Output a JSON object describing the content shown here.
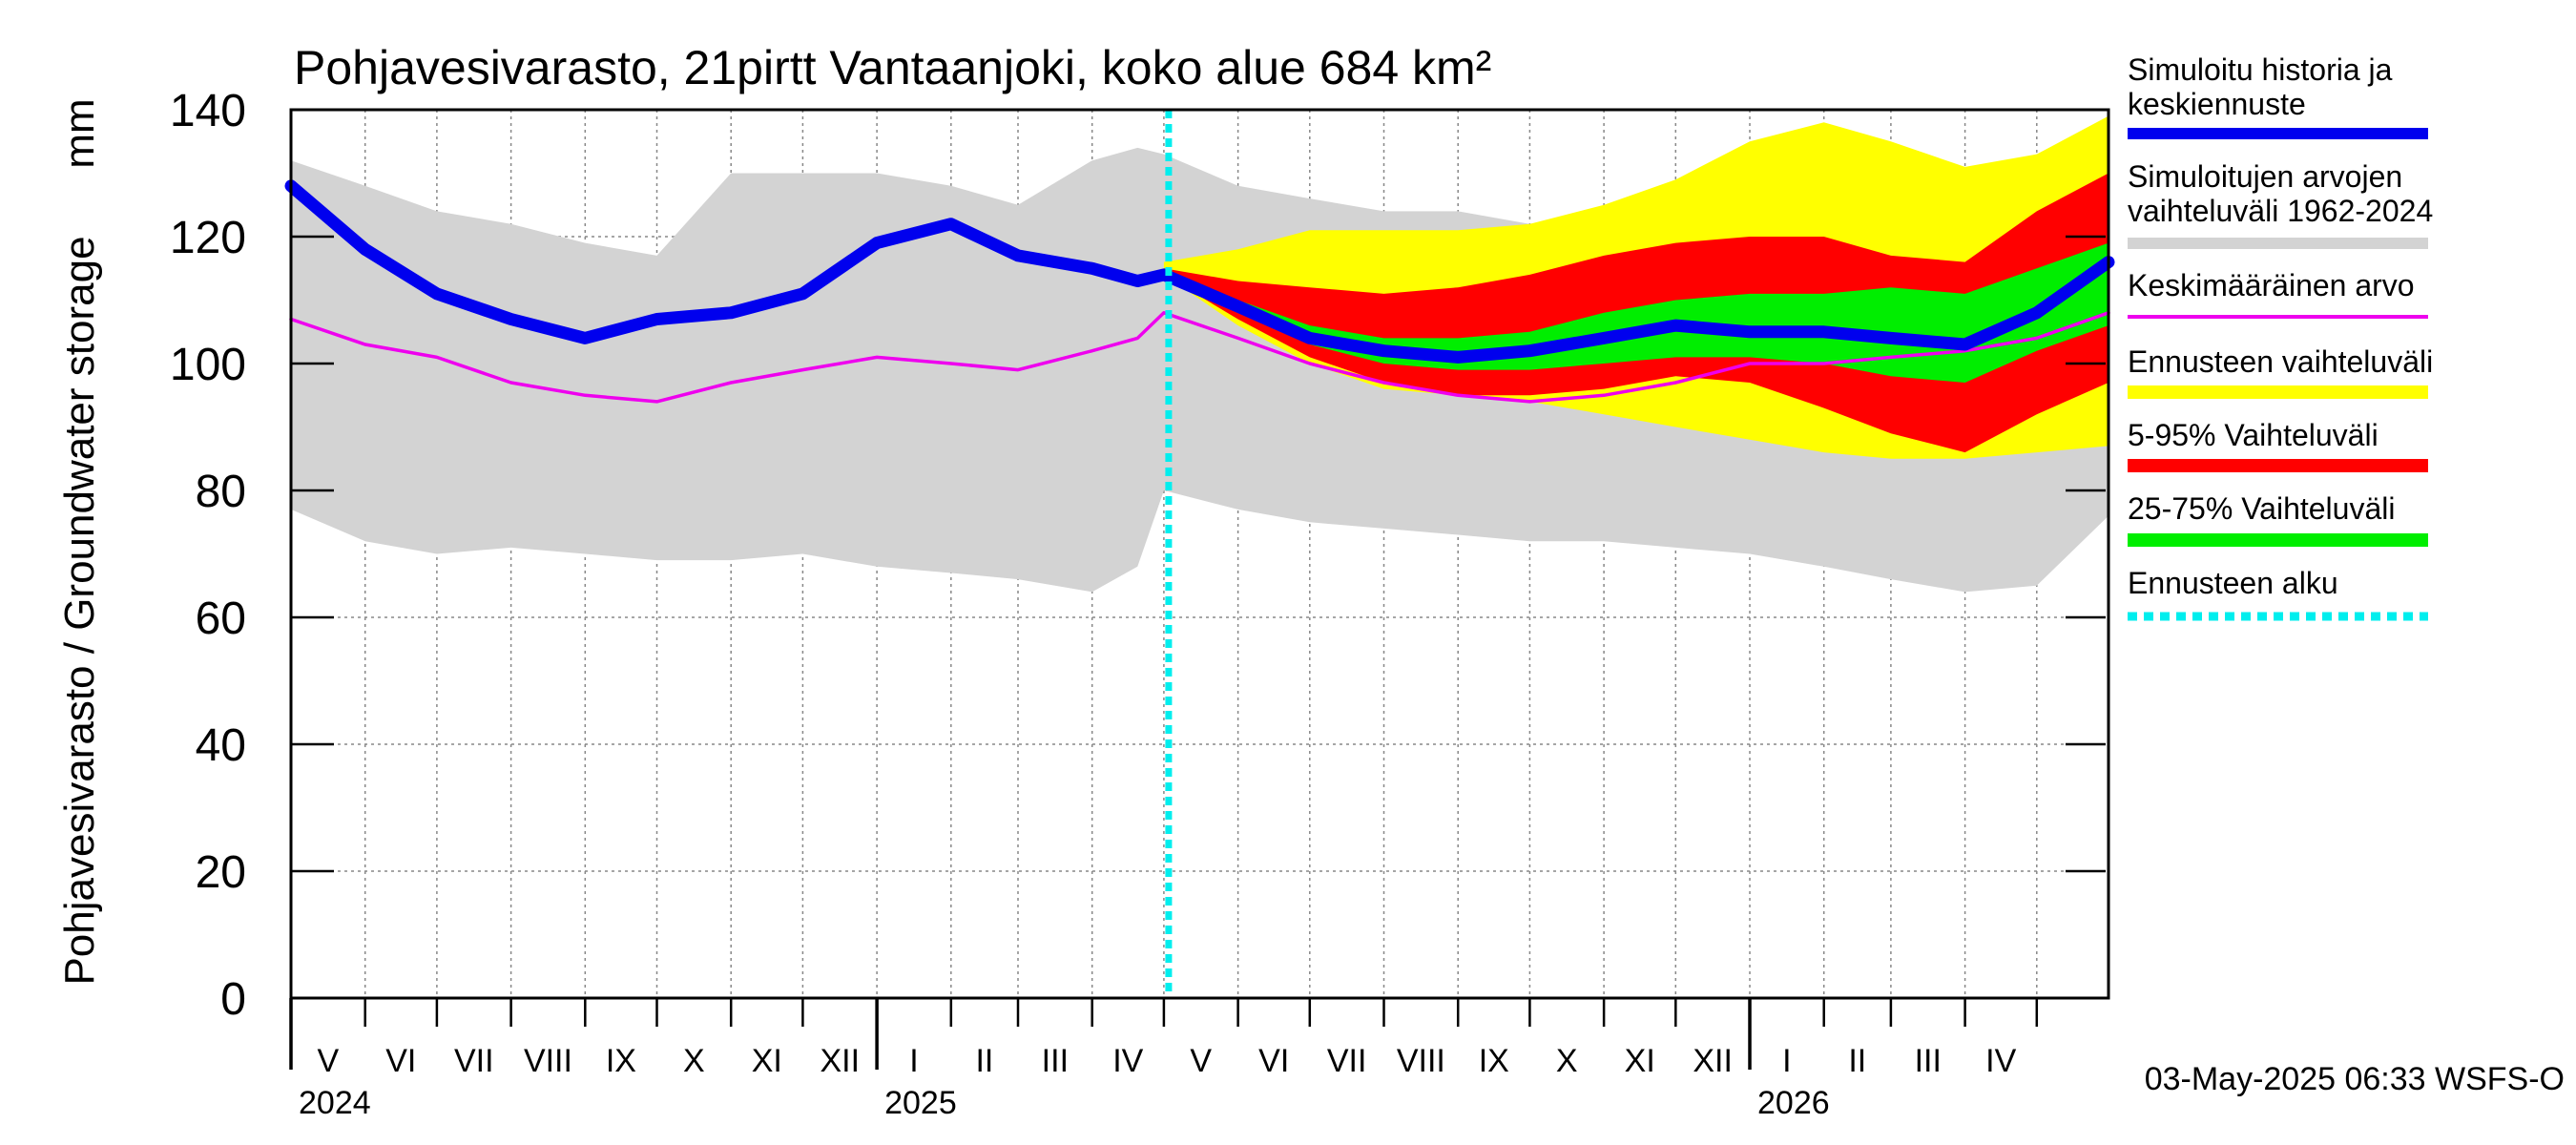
{
  "chart_data": {
    "type": "area",
    "title": "Pohjavesivarasto, 21pirtt Vantaanjoki, koko alue 684 km²",
    "ylabel": "Pohjavesivarasto / Groundwater storage",
    "yunit": "mm",
    "ylim": [
      0,
      140
    ],
    "yticks": [
      "0",
      "20",
      "40",
      "60",
      "80",
      "100",
      "120",
      "140"
    ],
    "x_range": [
      "2024-05-01",
      "2026-05-31"
    ],
    "month_labels": [
      "V",
      "VI",
      "VII",
      "VIII",
      "IX",
      "X",
      "XI",
      "XII",
      "I",
      "II",
      "III",
      "IV",
      "V",
      "VI",
      "VII",
      "VIII",
      "IX",
      "X",
      "XI",
      "XII",
      "I",
      "II",
      "III",
      "IV"
    ],
    "year_labels": [
      "2024",
      "2025",
      "2026"
    ],
    "forecast_start": "2025-05-03",
    "timestamp": "03-May-2025 06:33 WSFS-O",
    "grid": true,
    "legend_position": "right",
    "legend": [
      {
        "key": "sim",
        "text": "Simuloitu historia ja keskiennuste",
        "color": "#0000ee",
        "style": "thick"
      },
      {
        "key": "hist",
        "text": "Simuloitujen arvojen vaihteluväli 1962-2024",
        "color": "#d3d3d3",
        "style": "band"
      },
      {
        "key": "mean",
        "text": "Keskimääräinen arvo",
        "color": "#ee00ee",
        "style": "thin"
      },
      {
        "key": "ens",
        "text": "Ennusteen vaihteluväli",
        "color": "#ffff00",
        "style": "band"
      },
      {
        "key": "p5_95",
        "text": "5-95% Vaihteluväli",
        "color": "#ff0000",
        "style": "band"
      },
      {
        "key": "p25_75",
        "text": "25-75% Vaihteluväli",
        "color": "#00ee00",
        "style": "band"
      },
      {
        "key": "start",
        "text": "Ennusteen alku",
        "color": "#00eeee",
        "style": "dotted"
      }
    ],
    "series": [
      {
        "key": "hist",
        "type": "band",
        "x": [
          "2024-05-01",
          "2024-06-01",
          "2024-07-01",
          "2024-08-01",
          "2024-09-01",
          "2024-10-01",
          "2024-11-01",
          "2024-12-01",
          "2025-01-01",
          "2025-02-01",
          "2025-03-01",
          "2025-04-01",
          "2025-04-20",
          "2025-05-01",
          "2025-06-01",
          "2025-07-01",
          "2025-08-01",
          "2025-09-01",
          "2025-10-01",
          "2025-11-01",
          "2025-12-01",
          "2026-01-01",
          "2026-02-01",
          "2026-03-01",
          "2026-04-01",
          "2026-05-01",
          "2026-05-31"
        ],
        "low": [
          77,
          72,
          70,
          71,
          70,
          69,
          69,
          70,
          68,
          67,
          66,
          64,
          68,
          80,
          77,
          75,
          74,
          73,
          72,
          72,
          71,
          70,
          68,
          66,
          64,
          65,
          76
        ],
        "high": [
          132,
          128,
          124,
          122,
          119,
          117,
          130,
          130,
          130,
          128,
          125,
          132,
          134,
          133,
          128,
          126,
          124,
          124,
          122,
          124,
          126,
          127,
          126,
          128,
          130,
          133,
          134
        ]
      },
      {
        "key": "ens",
        "type": "band",
        "x": [
          "2025-05-01",
          "2025-06-01",
          "2025-07-01",
          "2025-08-01",
          "2025-09-01",
          "2025-10-01",
          "2025-11-01",
          "2025-12-01",
          "2026-01-01",
          "2026-02-01",
          "2026-03-01",
          "2026-04-01",
          "2026-05-01",
          "2026-05-31"
        ],
        "low": [
          114,
          106,
          100,
          96,
          95,
          94,
          92,
          90,
          88,
          86,
          85,
          85,
          86,
          87
        ],
        "high": [
          116,
          118,
          121,
          121,
          121,
          122,
          125,
          129,
          135,
          138,
          135,
          131,
          133,
          139
        ]
      },
      {
        "key": "p5_95",
        "type": "band",
        "x": [
          "2025-05-01",
          "2025-06-01",
          "2025-07-01",
          "2025-08-01",
          "2025-09-01",
          "2025-10-01",
          "2025-11-01",
          "2025-12-01",
          "2026-01-01",
          "2026-02-01",
          "2026-03-01",
          "2026-04-01",
          "2026-05-01",
          "2026-05-31"
        ],
        "low": [
          114,
          107,
          101,
          97,
          95,
          95,
          96,
          98,
          97,
          93,
          89,
          86,
          92,
          97
        ],
        "high": [
          115,
          113,
          112,
          111,
          112,
          114,
          117,
          119,
          120,
          120,
          117,
          116,
          124,
          130
        ]
      },
      {
        "key": "p25_75",
        "type": "band",
        "x": [
          "2025-05-01",
          "2025-06-01",
          "2025-07-01",
          "2025-08-01",
          "2025-09-01",
          "2025-10-01",
          "2025-11-01",
          "2025-12-01",
          "2026-01-01",
          "2026-02-01",
          "2026-03-01",
          "2026-04-01",
          "2026-05-01",
          "2026-05-31"
        ],
        "low": [
          114,
          108,
          103,
          100,
          99,
          99,
          100,
          101,
          101,
          100,
          98,
          97,
          102,
          106
        ],
        "high": [
          115,
          110,
          106,
          104,
          104,
          105,
          108,
          110,
          111,
          111,
          112,
          111,
          115,
          119
        ]
      },
      {
        "key": "mean",
        "type": "line",
        "x": [
          "2024-05-01",
          "2024-06-01",
          "2024-07-01",
          "2024-08-01",
          "2024-09-01",
          "2024-10-01",
          "2024-11-01",
          "2024-12-01",
          "2025-01-01",
          "2025-02-01",
          "2025-03-01",
          "2025-04-01",
          "2025-04-20",
          "2025-05-01",
          "2025-06-01",
          "2025-07-01",
          "2025-08-01",
          "2025-09-01",
          "2025-10-01",
          "2025-11-01",
          "2025-12-01",
          "2026-01-01",
          "2026-02-01",
          "2026-03-01",
          "2026-04-01",
          "2026-05-01",
          "2026-05-31"
        ],
        "y": [
          107,
          103,
          101,
          97,
          95,
          94,
          97,
          99,
          101,
          100,
          99,
          102,
          104,
          108,
          104,
          100,
          97,
          95,
          94,
          95,
          97,
          100,
          100,
          101,
          102,
          104,
          108
        ]
      },
      {
        "key": "sim",
        "type": "line",
        "x": [
          "2024-05-01",
          "2024-06-01",
          "2024-07-01",
          "2024-08-01",
          "2024-09-01",
          "2024-10-01",
          "2024-11-01",
          "2024-12-01",
          "2025-01-01",
          "2025-02-01",
          "2025-03-01",
          "2025-04-01",
          "2025-04-20",
          "2025-05-01",
          "2025-06-01",
          "2025-07-01",
          "2025-08-01",
          "2025-09-01",
          "2025-10-01",
          "2025-11-01",
          "2025-12-01",
          "2026-01-01",
          "2026-02-01",
          "2026-03-01",
          "2026-04-01",
          "2026-05-01",
          "2026-05-31"
        ],
        "y": [
          128,
          118,
          111,
          107,
          104,
          107,
          108,
          111,
          119,
          122,
          117,
          115,
          113,
          114,
          109,
          104,
          102,
          101,
          102,
          104,
          106,
          105,
          105,
          104,
          103,
          108,
          116
        ]
      }
    ]
  }
}
